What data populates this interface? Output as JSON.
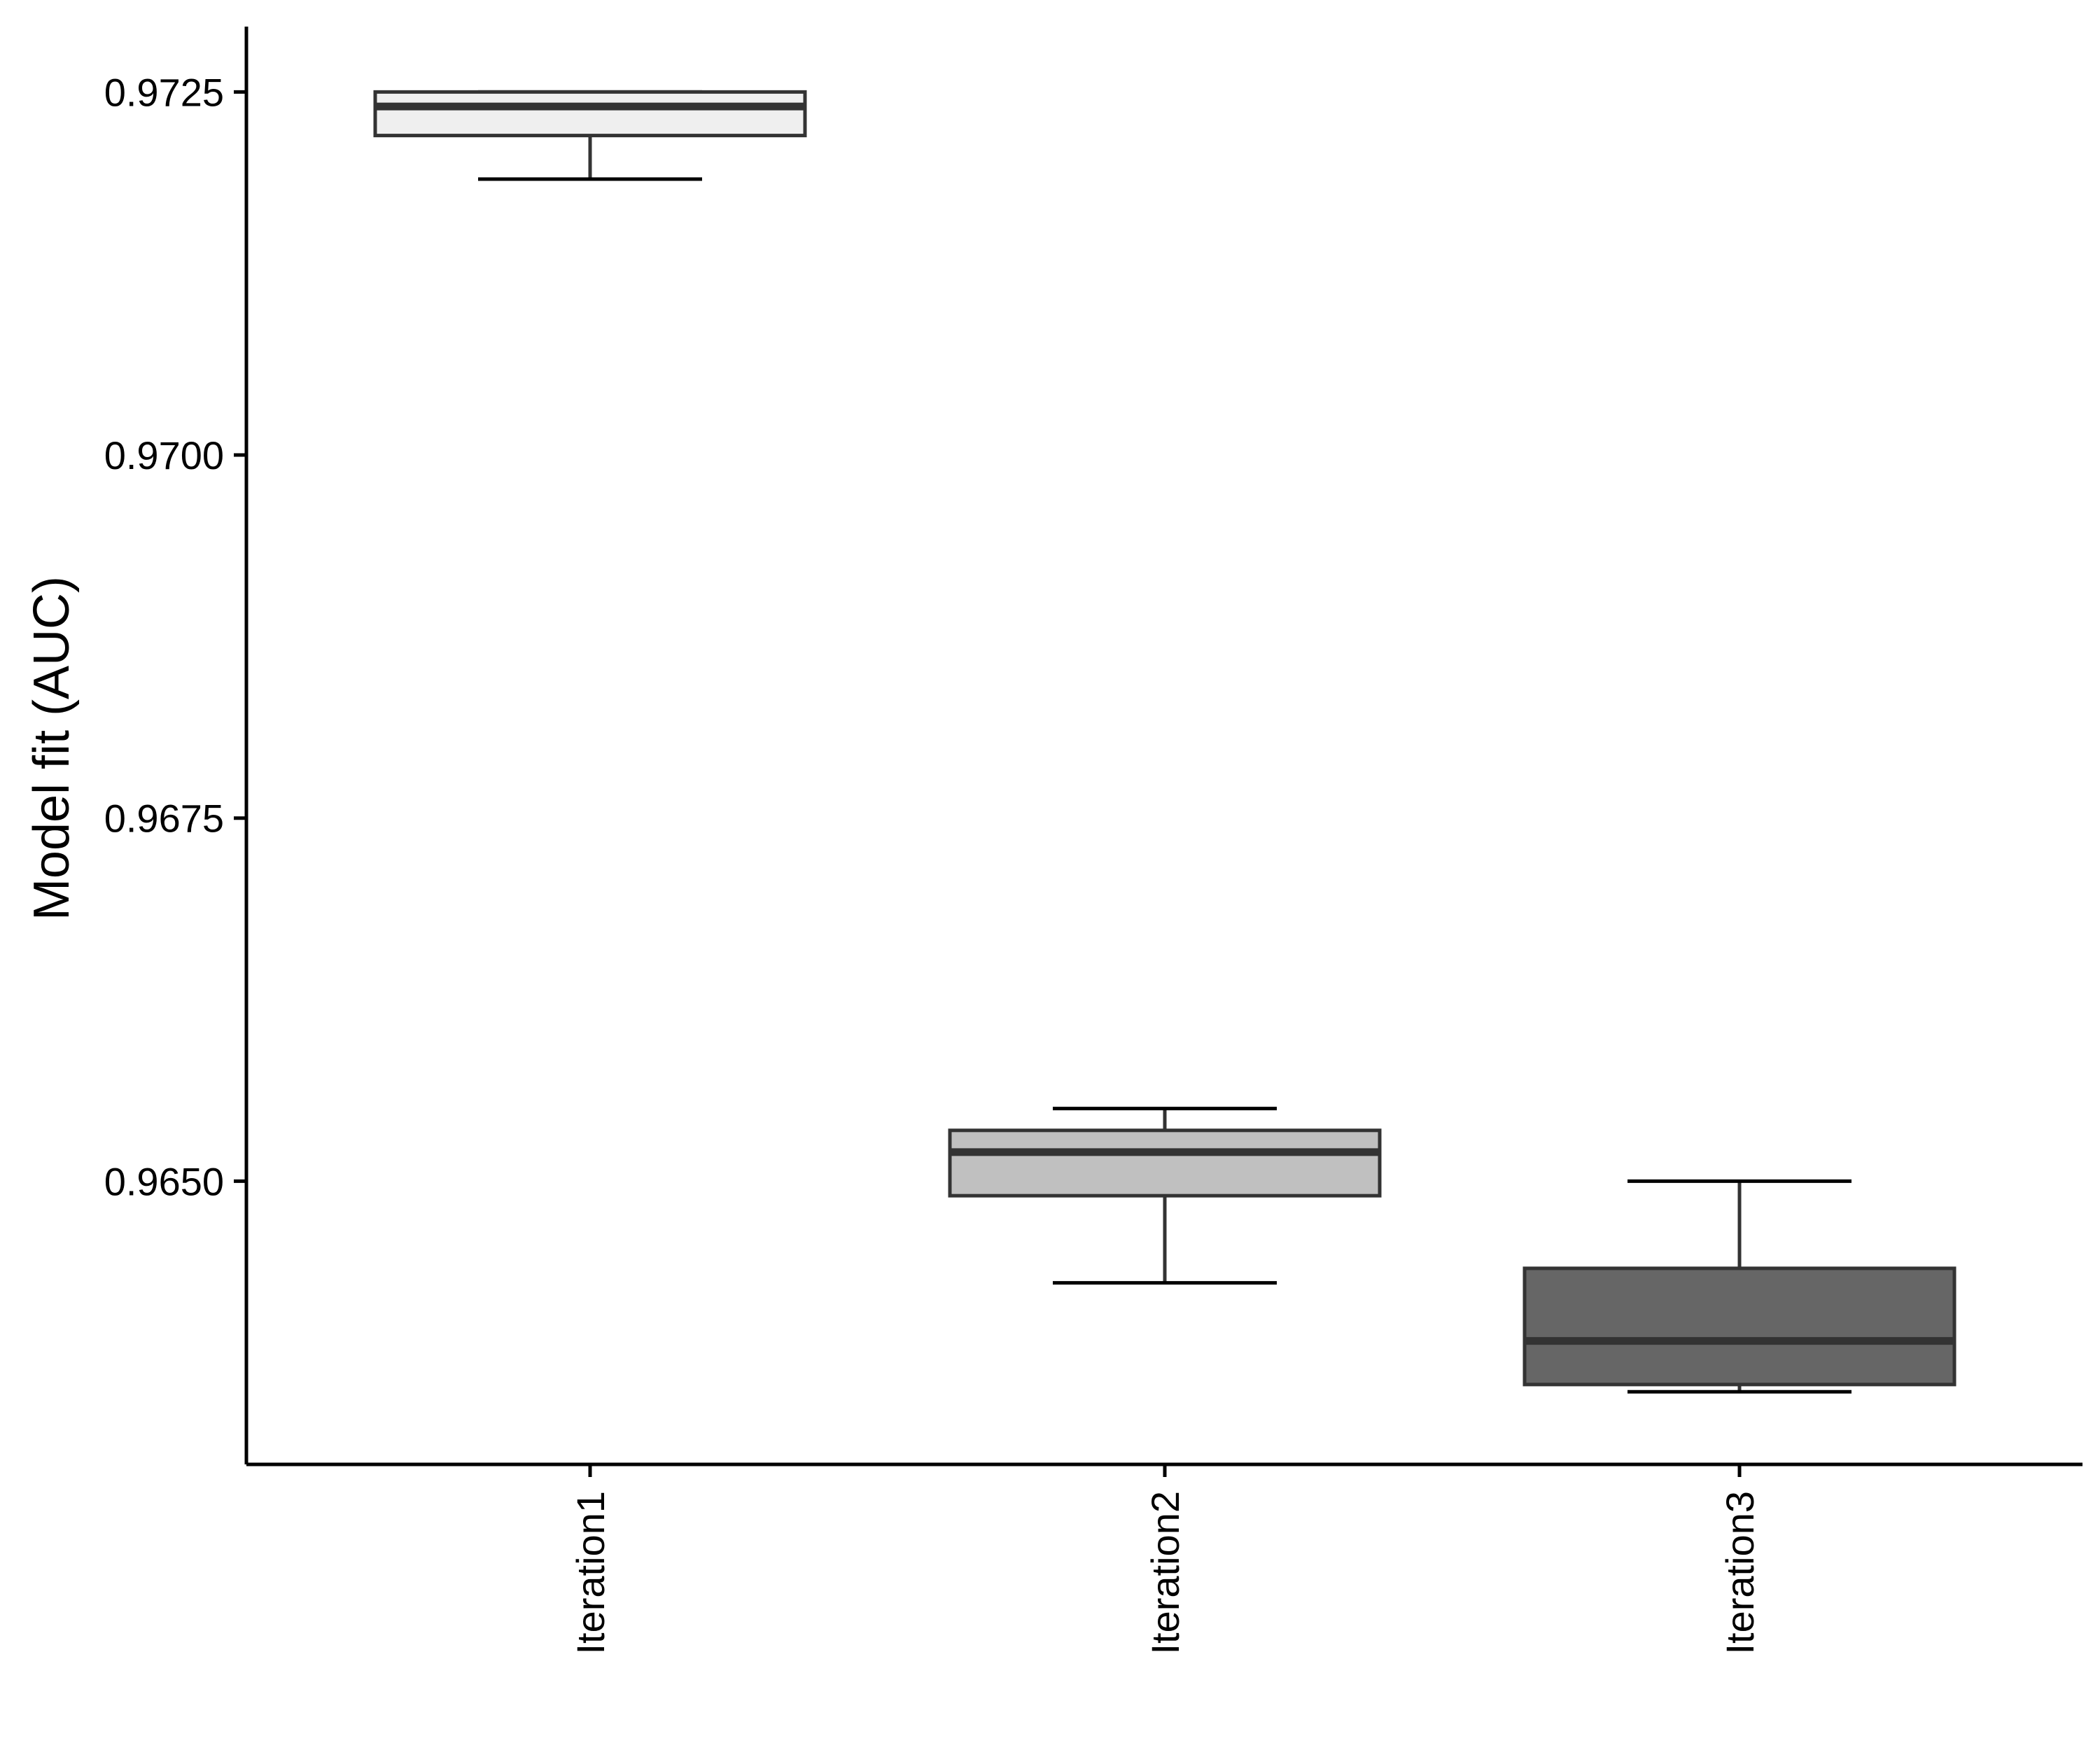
{
  "chart_data": {
    "type": "boxplot",
    "title": "",
    "xlabel": "",
    "ylabel": "Model fit (AUC)",
    "ylim": [
      0.96305,
      0.97295
    ],
    "yticks": [
      "0.9650",
      "0.9675",
      "0.9700",
      "0.9725"
    ],
    "categories": [
      "Iteration1",
      "Iteration2",
      "Iteration3"
    ],
    "boxes": [
      {
        "label": "Iteration1",
        "min": 0.9719,
        "q1": 0.9722,
        "median": 0.9724,
        "q3": 0.9725,
        "max": 0.9725,
        "fill": "#efefef"
      },
      {
        "label": "Iteration2",
        "min": 0.9643,
        "q1": 0.9649,
        "median": 0.9652,
        "q3": 0.96535,
        "max": 0.9655,
        "fill": "#c0c0c0"
      },
      {
        "label": "Iteration3",
        "min": 0.96355,
        "q1": 0.9636,
        "median": 0.9639,
        "q3": 0.9644,
        "max": 0.965,
        "fill": "#666666"
      }
    ],
    "grid": false,
    "legend": "none",
    "colors": {
      "axis": "#000000",
      "box_stroke": "#333333",
      "median": "#333333"
    }
  }
}
